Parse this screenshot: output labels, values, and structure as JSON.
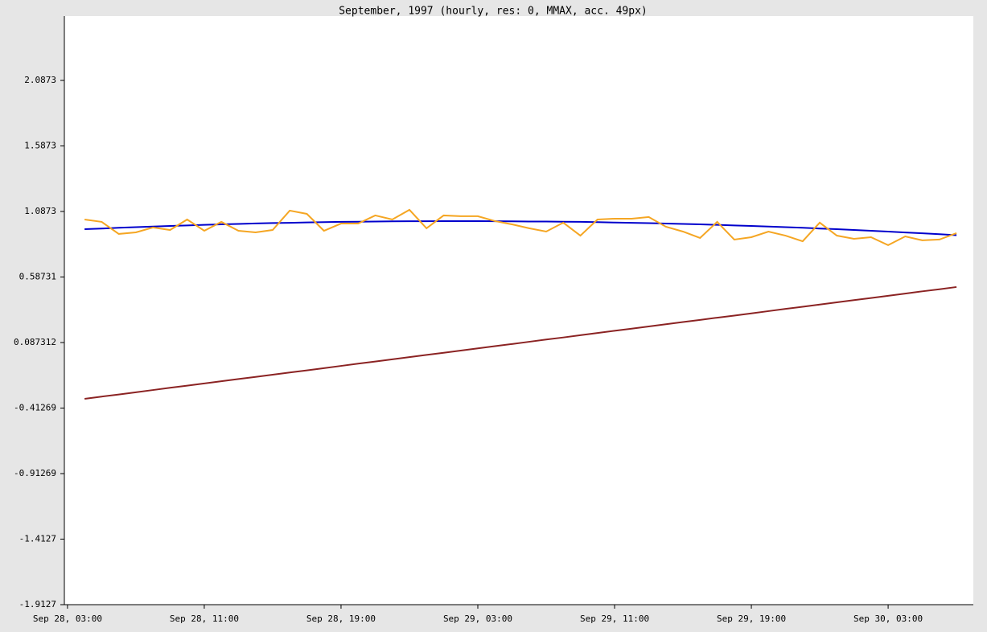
{
  "chart_data": {
    "type": "line",
    "title": "September, 1997 (hourly, res: 0, MMAX, acc. 49px)",
    "x": [
      "Sep 28, 04:00",
      "Sep 28, 05:00",
      "Sep 28, 06:00",
      "Sep 28, 07:00",
      "Sep 28, 08:00",
      "Sep 28, 09:00",
      "Sep 28, 10:00",
      "Sep 28, 11:00",
      "Sep 28, 12:00",
      "Sep 28, 13:00",
      "Sep 28, 14:00",
      "Sep 28, 15:00",
      "Sep 28, 16:00",
      "Sep 28, 17:00",
      "Sep 28, 18:00",
      "Sep 28, 19:00",
      "Sep 28, 20:00",
      "Sep 28, 21:00",
      "Sep 28, 22:00",
      "Sep 28, 23:00",
      "Sep 29, 00:00",
      "Sep 29, 01:00",
      "Sep 29, 02:00",
      "Sep 29, 03:00",
      "Sep 29, 04:00",
      "Sep 29, 05:00",
      "Sep 29, 06:00",
      "Sep 29, 07:00",
      "Sep 29, 08:00",
      "Sep 29, 09:00",
      "Sep 29, 10:00",
      "Sep 29, 11:00",
      "Sep 29, 12:00",
      "Sep 29, 13:00",
      "Sep 29, 14:00",
      "Sep 29, 15:00",
      "Sep 29, 16:00",
      "Sep 29, 17:00",
      "Sep 29, 18:00",
      "Sep 29, 19:00",
      "Sep 29, 20:00",
      "Sep 29, 21:00",
      "Sep 29, 22:00",
      "Sep 29, 23:00",
      "Sep 30, 00:00",
      "Sep 30, 01:00",
      "Sep 30, 02:00",
      "Sep 30, 03:00",
      "Sep 30, 04:00",
      "Sep 30, 05:00",
      "Sep 30, 06:00",
      "Sep 30, 07:00"
    ],
    "series": [
      {
        "color": "#0000cc",
        "values": [
          0.952,
          0.957,
          0.963,
          0.968,
          0.972,
          0.977,
          0.981,
          0.985,
          0.989,
          0.992,
          0.996,
          0.999,
          1.001,
          1.004,
          1.006,
          1.008,
          1.009,
          1.011,
          1.012,
          1.013,
          1.013,
          1.014,
          1.014,
          1.014,
          1.013,
          1.012,
          1.011,
          1.011,
          1.009,
          1.008,
          1.006,
          1.003,
          1.001,
          0.998,
          0.995,
          0.992,
          0.989,
          0.985,
          0.981,
          0.977,
          0.972,
          0.968,
          0.963,
          0.957,
          0.952,
          0.946,
          0.94,
          0.934,
          0.927,
          0.921,
          0.914,
          0.906
        ]
      },
      {
        "color": "#f5a623",
        "values": [
          1.026,
          1.008,
          0.916,
          0.928,
          0.965,
          0.946,
          1.026,
          0.94,
          1.008,
          0.94,
          0.928,
          0.946,
          1.094,
          1.069,
          0.94,
          0.995,
          0.995,
          1.057,
          1.026,
          1.1,
          0.959,
          1.057,
          1.051,
          1.051,
          1.014,
          0.989,
          0.959,
          0.934,
          1.002,
          0.903,
          1.026,
          1.032,
          1.032,
          1.045,
          0.971,
          0.934,
          0.885,
          1.008,
          0.873,
          0.891,
          0.934,
          0.903,
          0.86,
          1.002,
          0.903,
          0.879,
          0.891,
          0.83,
          0.897,
          0.867,
          0.873,
          0.922
        ]
      },
      {
        "color": "#8b2323",
        "values": [
          -0.342,
          -0.325,
          -0.309,
          -0.292,
          -0.275,
          -0.258,
          -0.242,
          -0.225,
          -0.208,
          -0.191,
          -0.175,
          -0.158,
          -0.141,
          -0.125,
          -0.108,
          -0.091,
          -0.074,
          -0.058,
          -0.041,
          -0.024,
          -0.007,
          0.009,
          0.026,
          0.043,
          0.06,
          0.076,
          0.093,
          0.11,
          0.126,
          0.143,
          0.16,
          0.177,
          0.193,
          0.21,
          0.227,
          0.244,
          0.26,
          0.277,
          0.293,
          0.31,
          0.327,
          0.344,
          0.36,
          0.377,
          0.394,
          0.411,
          0.427,
          0.444,
          0.461,
          0.478,
          0.494,
          0.511
        ]
      }
    ],
    "xlim": [
      "Sep 28, 02:49",
      "Sep 30, 07:59"
    ],
    "xticks": [
      "Sep 28, 03:00",
      "Sep 28, 11:00",
      "Sep 28, 19:00",
      "Sep 29, 03:00",
      "Sep 29, 11:00",
      "Sep 29, 19:00",
      "Sep 30, 03:00"
    ],
    "ylim": [
      -1.9127,
      2.5781
    ],
    "yticks": [
      -1.9127,
      -1.4127,
      -0.91269,
      -0.41269,
      0.087312,
      0.58731,
      1.0873,
      1.5873,
      2.0873
    ]
  }
}
